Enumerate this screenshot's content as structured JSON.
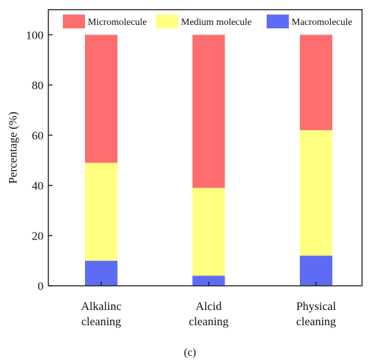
{
  "chart_data": {
    "type": "bar",
    "stacked": true,
    "categories": [
      [
        "Alkalinc",
        "cleaning"
      ],
      [
        "Alcid",
        "cleaning"
      ],
      [
        "Physical",
        "cleaning"
      ]
    ],
    "series": [
      {
        "name": "Macromolecule",
        "color": "#5e6cf5",
        "values": [
          10,
          4,
          12
        ]
      },
      {
        "name": "Medium molecule",
        "color": "#ffff80",
        "values": [
          39,
          35,
          50
        ]
      },
      {
        "name": "Micromolecule",
        "color": "#ff6e6e",
        "values": [
          51,
          61,
          38
        ]
      }
    ],
    "legend_order": [
      "Micromolecule",
      "Medium molecule",
      "Macromolecule"
    ],
    "legend_placement": "top",
    "ylabel": "Percentage (%)",
    "xlabel": "",
    "ylim": [
      0,
      110
    ],
    "yticks": [
      0,
      20,
      40,
      60,
      80,
      100
    ],
    "grid": false,
    "caption": "(c)"
  }
}
